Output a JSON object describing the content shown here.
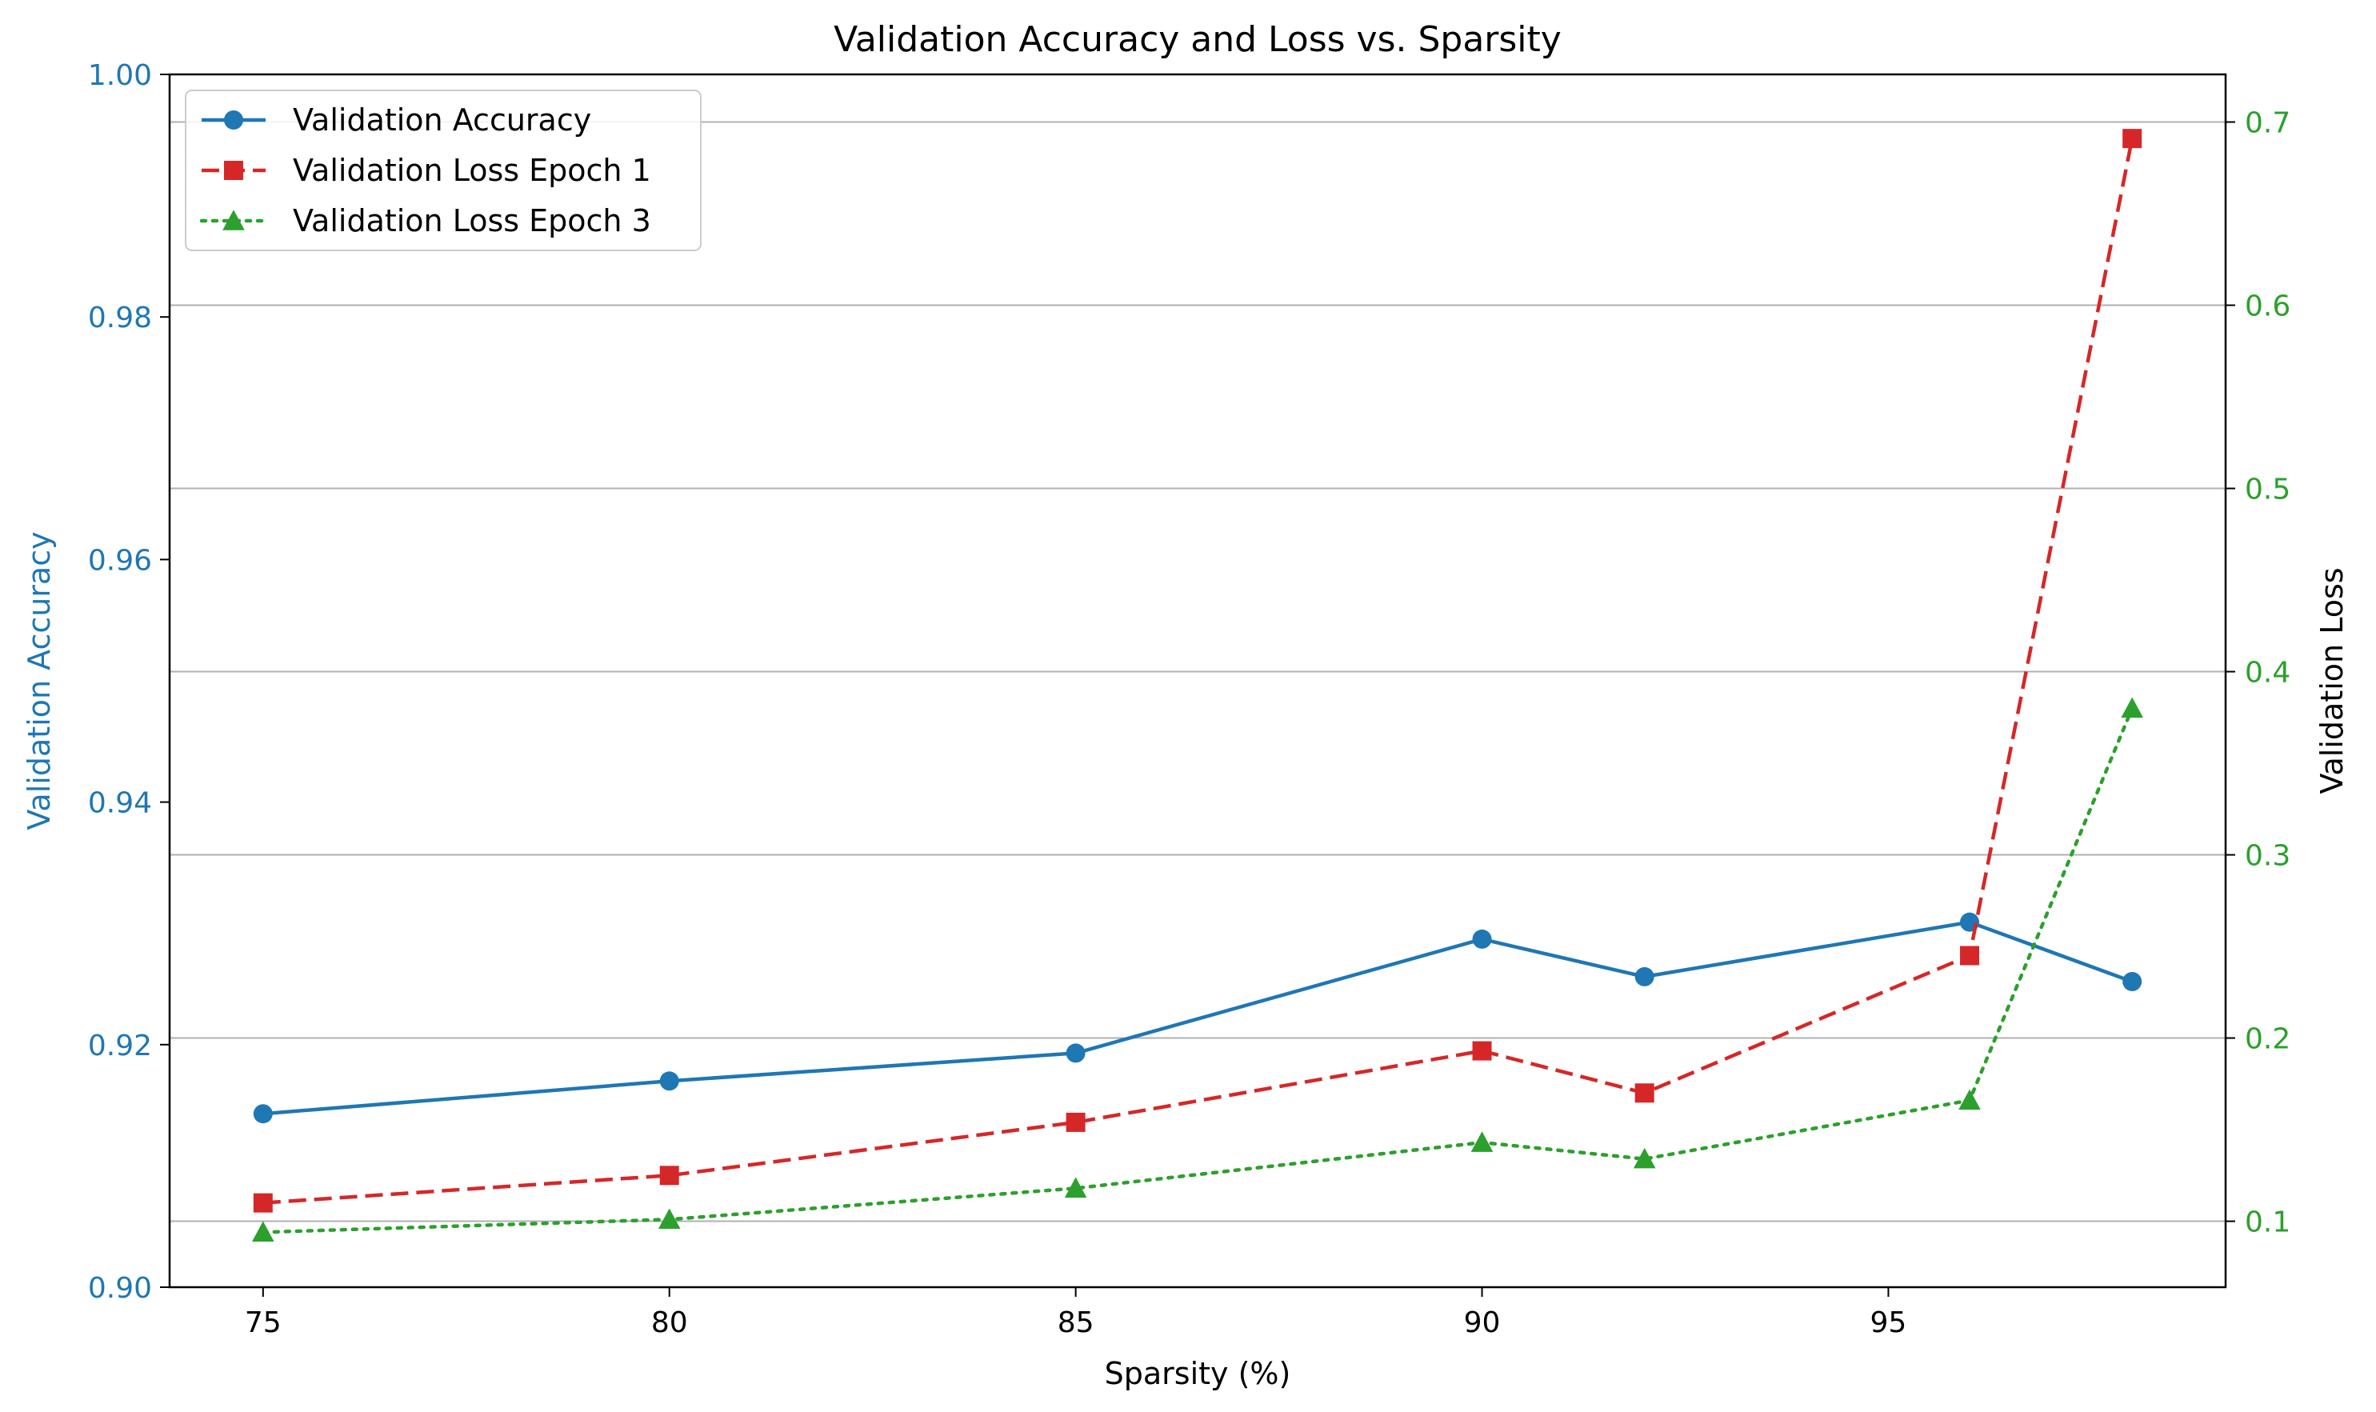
{
  "chart_data": {
    "type": "line",
    "title": "Validation Accuracy and Loss vs. Sparsity",
    "xlabel": "Sparsity (%)",
    "ylabel_left": "Validation Accuracy",
    "ylabel_right": "Validation Loss",
    "x": [
      75,
      80,
      85,
      90,
      92,
      96,
      98
    ],
    "xlim": [
      73.85,
      99.15
    ],
    "xticks": [
      75,
      80,
      85,
      90,
      95
    ],
    "ylim_left": [
      0.9,
      1.0
    ],
    "yticks_left": [
      "0.90",
      "0.92",
      "0.94",
      "0.96",
      "0.98",
      "1.00"
    ],
    "ylim_right": [
      0.064,
      0.726
    ],
    "yticks_right": [
      "0.1",
      "0.2",
      "0.3",
      "0.4",
      "0.5",
      "0.6",
      "0.7"
    ],
    "grid": "horizontal lines on right axis",
    "legend_position": "upper left",
    "series": [
      {
        "name": "Validation Accuracy",
        "axis": "left",
        "values": [
          0.9143,
          0.917,
          0.9193,
          0.9287,
          0.9256,
          0.9301,
          0.9252
        ],
        "color": "#1f77b4",
        "marker": "circle",
        "linestyle": "solid"
      },
      {
        "name": "Validation Loss Epoch 1",
        "axis": "right",
        "values": [
          0.11,
          0.125,
          0.154,
          0.193,
          0.17,
          0.245,
          0.691
        ],
        "color": "#d62728",
        "marker": "square",
        "linestyle": "dashed"
      },
      {
        "name": "Validation Loss Epoch 3",
        "axis": "right",
        "values": [
          0.094,
          0.101,
          0.118,
          0.143,
          0.134,
          0.166,
          0.38
        ],
        "color": "#2ca02c",
        "marker": "triangle",
        "linestyle": "dotted"
      }
    ],
    "colors": {
      "left_axis": "#1f77b4",
      "right_ticks": "#2ca02c",
      "grid": "#b0b0b0"
    }
  }
}
